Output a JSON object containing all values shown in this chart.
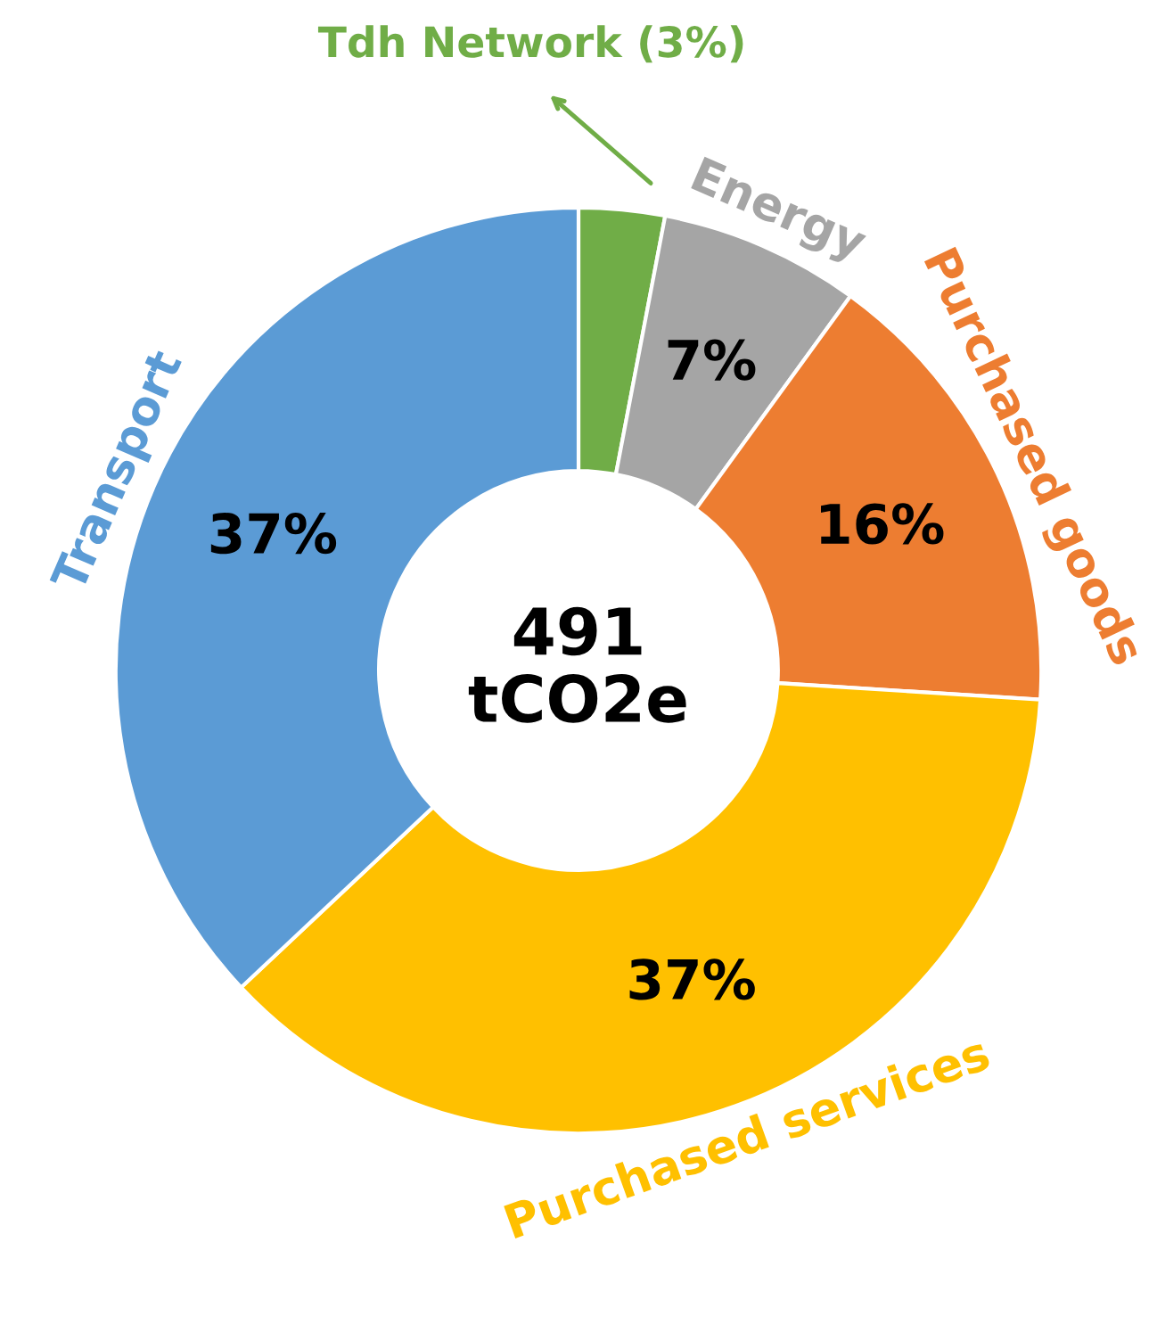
{
  "chart_data": {
    "type": "donut",
    "categories": [
      "Tdh Network (3%)",
      "Energy",
      "Purchased goods",
      "Purchased services",
      "Transport"
    ],
    "values": [
      3,
      7,
      16,
      37,
      37
    ],
    "colors": [
      "#70ad47",
      "#a5a5a5",
      "#ed7d31",
      "#ffc000",
      "#5b9bd5"
    ],
    "value_labels": [
      null,
      "7%",
      "16%",
      "37%",
      "37%"
    ],
    "annotations": [
      "491\ntCO2e"
    ]
  }
}
